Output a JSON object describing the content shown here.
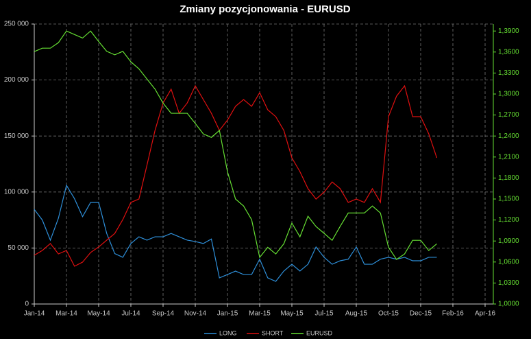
{
  "chart_data": {
    "type": "line",
    "title": "Zmiany pozycjonowania - EURUSD",
    "categories": [
      "Jan-14",
      null,
      null,
      null,
      "Mar-14",
      null,
      null,
      null,
      "May-14",
      null,
      null,
      null,
      "Jul-14",
      null,
      null,
      null,
      "Sep-14",
      null,
      null,
      null,
      "Nov-14",
      null,
      null,
      null,
      "Jan-15",
      null,
      null,
      null,
      "Mar-15",
      null,
      null,
      null,
      "May-15",
      null,
      null,
      null,
      "Jul-15",
      null,
      null,
      null,
      "Aug-15",
      null,
      null,
      null,
      "Oct-15",
      null,
      null,
      null,
      "Dec-15",
      null,
      null,
      null,
      "Feb-16",
      null,
      null,
      null,
      "Apr-16"
    ],
    "series": [
      {
        "name": "LONG",
        "color": "#2e8fd9",
        "values": [
          84500,
          75000,
          57000,
          76600,
          106000,
          94000,
          78000,
          90700,
          90700,
          63000,
          45000,
          41700,
          54000,
          60000,
          57000,
          60000,
          60000,
          63000,
          60000,
          57000,
          55800,
          54000,
          58000,
          23300,
          26300,
          29400,
          26300,
          26300,
          40000,
          23300,
          20200,
          29400,
          35500,
          29400,
          35500,
          50900,
          41700,
          35500,
          38600,
          40000,
          50900,
          35500,
          35500,
          40000,
          41700,
          40000,
          41700,
          38600,
          38600,
          41700,
          41700,
          null,
          null,
          null,
          null,
          null,
          null
        ]
      },
      {
        "name": "SHORT",
        "color": "#e01010",
        "values": [
          43500,
          47800,
          54000,
          44700,
          47800,
          33700,
          37400,
          46000,
          50900,
          57000,
          63000,
          75400,
          90700,
          93700,
          124000,
          155000,
          179500,
          191800,
          170300,
          179500,
          194800,
          182600,
          170300,
          155000,
          164200,
          176500,
          182600,
          176500,
          188700,
          173400,
          167300,
          155000,
          130500,
          118200,
          103000,
          93700,
          99900,
          109000,
          103000,
          90700,
          93700,
          90700,
          103000,
          90700,
          167300,
          185600,
          194800,
          167300,
          167300,
          152000,
          130500,
          null,
          null,
          null,
          null,
          null,
          null
        ]
      },
      {
        "name": "EURUSD",
        "color": "#66e033",
        "axis": "y2",
        "values": [
          1.3606,
          1.3655,
          1.3655,
          1.3734,
          1.39,
          1.385,
          1.38,
          1.39,
          1.375,
          1.361,
          1.356,
          1.361,
          1.346,
          1.336,
          1.3215,
          1.307,
          1.287,
          1.2725,
          1.2725,
          1.2725,
          1.258,
          1.243,
          1.238,
          1.248,
          1.189,
          1.15,
          1.14,
          1.1205,
          1.0666,
          1.081,
          1.0715,
          1.086,
          1.1156,
          1.096,
          1.1254,
          1.1107,
          1.101,
          1.091,
          1.111,
          1.13,
          1.13,
          1.13,
          1.14,
          1.13,
          1.081,
          1.0637,
          1.0715,
          1.091,
          1.091,
          1.0764,
          1.086,
          null,
          null,
          null,
          null,
          null,
          null
        ]
      }
    ],
    "ylim": [
      0,
      250000
    ],
    "yticks": [
      0,
      {
        "value": 50000,
        "label": "50 000"
      },
      {
        "value": 100000,
        "label": "100 000"
      },
      {
        "value": 150000,
        "label": "150 000"
      },
      {
        "value": 200000,
        "label": "200 000"
      },
      {
        "value": 250000,
        "label": "250 000"
      }
    ],
    "y2lim": [
      1.0,
      1.4
    ],
    "y2ticks": [
      {
        "value": 1.0,
        "label": "1,0000"
      },
      {
        "value": 1.03,
        "label": "1,0300"
      },
      {
        "value": 1.06,
        "label": "1,0600"
      },
      {
        "value": 1.09,
        "label": "1,0900"
      },
      {
        "value": 1.12,
        "label": "1,1200"
      },
      {
        "value": 1.15,
        "label": "1,1500"
      },
      {
        "value": 1.18,
        "label": "1,1800"
      },
      {
        "value": 1.21,
        "label": "1,2100"
      },
      {
        "value": 1.24,
        "label": "1,2400"
      },
      {
        "value": 1.27,
        "label": "1,2700"
      },
      {
        "value": 1.3,
        "label": "1,3000"
      },
      {
        "value": 1.33,
        "label": "1,3300"
      },
      {
        "value": 1.36,
        "label": "1,3600"
      },
      {
        "value": 1.39,
        "label": "1,3900"
      }
    ],
    "grid": true,
    "legend": "bottom"
  }
}
